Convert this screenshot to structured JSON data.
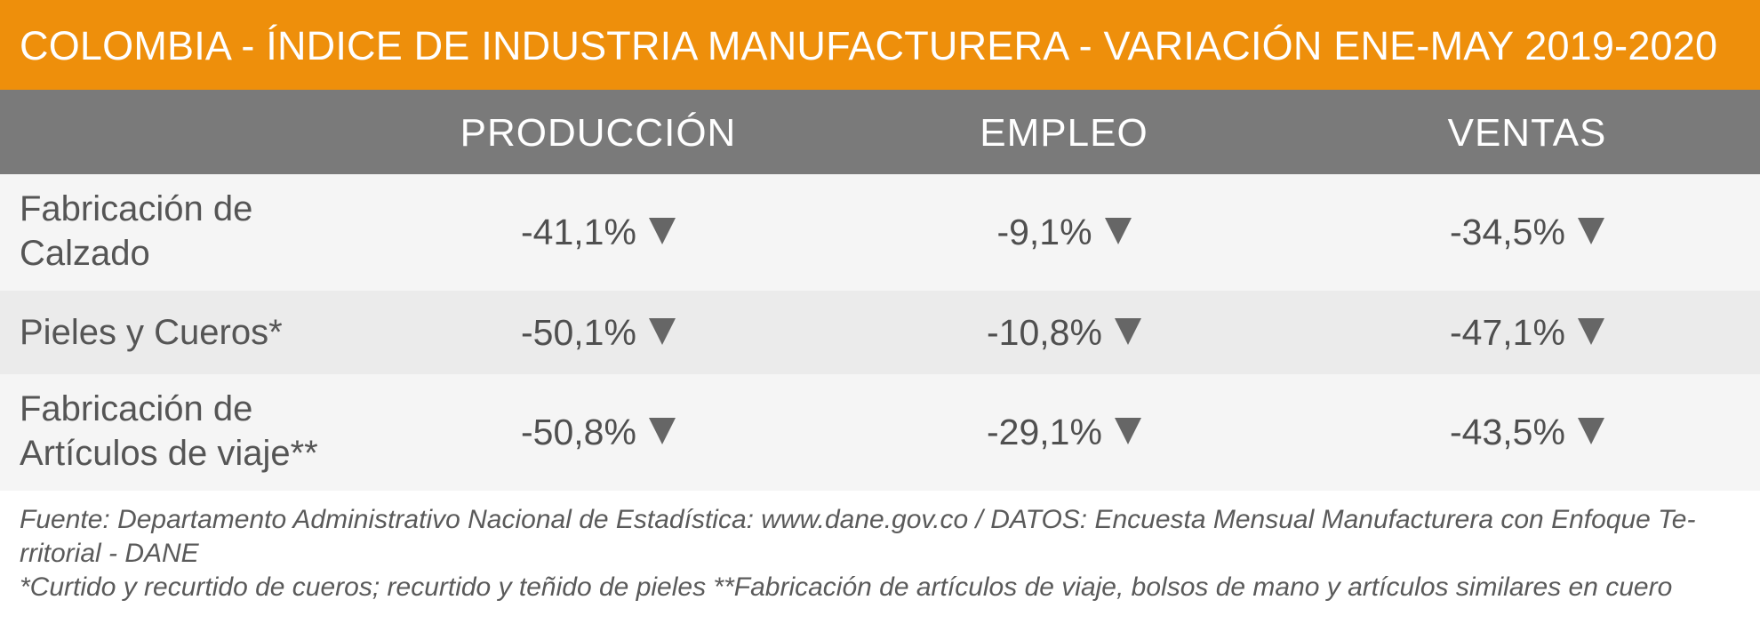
{
  "title": "COLOMBIA - ÍNDICE DE INDUSTRIA MANUFACTURERA - VARIACIÓN ENE-MAY 2019-2020",
  "colors": {
    "title_bar": "#ee8f0b",
    "header_row": "#7a7a7a",
    "row_light": "#f5f5f5",
    "row_dark": "#ebebeb",
    "arrow": "#666666"
  },
  "chart_data": {
    "type": "table",
    "title": "COLOMBIA - ÍNDICE DE INDUSTRIA MANUFACTURERA - VARIACIÓN ENE-MAY 2019-2020",
    "columns": [
      "PRODUCCIÓN",
      "EMPLEO",
      "VENTAS"
    ],
    "rows": [
      {
        "label_lines": [
          "Fabricación de",
          "Calzado"
        ],
        "values": [
          -41.1,
          -9.1,
          -34.5
        ],
        "display": [
          "-41,1%",
          "-9,1%",
          "-34,5%"
        ],
        "indicator_icon": "down-triangle-icon"
      },
      {
        "label_lines": [
          "Pieles y Cueros*"
        ],
        "values": [
          -50.1,
          -10.8,
          -47.1
        ],
        "display": [
          "-50,1%",
          "-10,8%",
          "-47,1%"
        ],
        "indicator_icon": "down-triangle-icon"
      },
      {
        "label_lines": [
          "Fabricación de",
          "Artículos de viaje**"
        ],
        "values": [
          -50.8,
          -29.1,
          -43.5
        ],
        "display": [
          "-50,8%",
          "-29,1%",
          "-43,5%"
        ],
        "indicator_icon": "down-triangle-icon"
      }
    ]
  },
  "footer": {
    "source_line_1": "Fuente: Departamento Administrativo Nacional de Estadística: www.dane.gov.co / DATOS: Encuesta Mensual Manufacturera con Enfoque Te-",
    "source_line_2": "rritorial - DANE",
    "notes": "*Curtido y recurtido de cueros; recurtido y teñido de pieles  **Fabricación de artículos de viaje, bolsos de mano y artículos similares en cuero"
  }
}
